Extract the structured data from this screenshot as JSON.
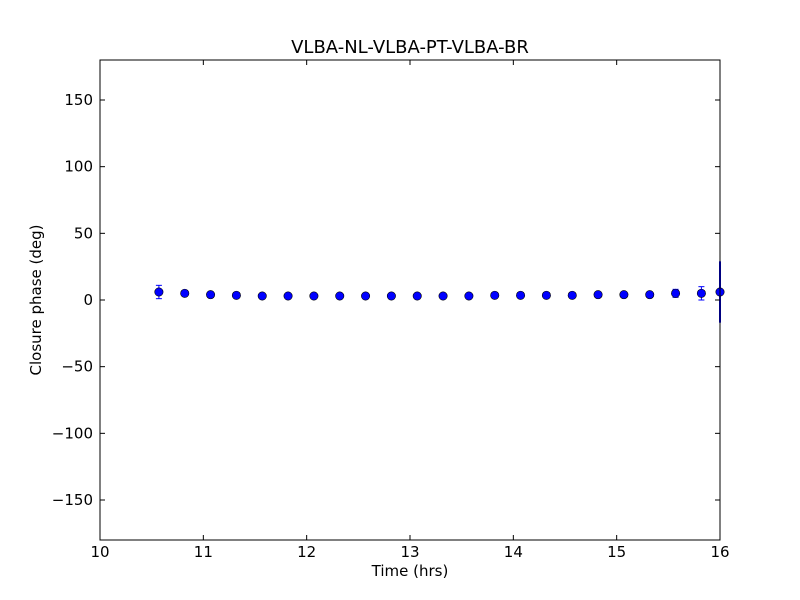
{
  "chart_data": {
    "type": "scatter",
    "title": "VLBA-NL-VLBA-PT-VLBA-BR",
    "xlabel": "Time (hrs)",
    "ylabel": "Closure phase (deg)",
    "xlim": [
      10,
      16
    ],
    "ylim": [
      -180,
      180
    ],
    "xticks": [
      10,
      11,
      12,
      13,
      14,
      15,
      16
    ],
    "xtick_labels": [
      "10",
      "11",
      "12",
      "13",
      "14",
      "15",
      "16"
    ],
    "yticks": [
      -150,
      -100,
      -50,
      0,
      50,
      100,
      150
    ],
    "ytick_labels": [
      "−150",
      "−100",
      "−50",
      "0",
      "50",
      "100",
      "150"
    ],
    "grid": false,
    "series": [
      {
        "color": "#0000ff",
        "marker": "circle",
        "points": [
          {
            "x": 10.57,
            "y": 6.0,
            "err": 5.0
          },
          {
            "x": 10.82,
            "y": 5.0,
            "err": 1.5
          },
          {
            "x": 11.07,
            "y": 4.0,
            "err": 1.5
          },
          {
            "x": 11.32,
            "y": 3.5,
            "err": 1.0
          },
          {
            "x": 11.57,
            "y": 3.0,
            "err": 1.0
          },
          {
            "x": 11.82,
            "y": 3.0,
            "err": 1.0
          },
          {
            "x": 12.07,
            "y": 3.0,
            "err": 1.0
          },
          {
            "x": 12.32,
            "y": 3.0,
            "err": 1.0
          },
          {
            "x": 12.57,
            "y": 3.0,
            "err": 1.0
          },
          {
            "x": 12.82,
            "y": 3.0,
            "err": 1.0
          },
          {
            "x": 13.07,
            "y": 3.0,
            "err": 1.0
          },
          {
            "x": 13.32,
            "y": 3.0,
            "err": 1.0
          },
          {
            "x": 13.57,
            "y": 3.0,
            "err": 1.0
          },
          {
            "x": 13.82,
            "y": 3.5,
            "err": 1.0
          },
          {
            "x": 14.07,
            "y": 3.5,
            "err": 1.0
          },
          {
            "x": 14.32,
            "y": 3.5,
            "err": 1.0
          },
          {
            "x": 14.57,
            "y": 3.5,
            "err": 1.0
          },
          {
            "x": 14.82,
            "y": 4.0,
            "err": 1.0
          },
          {
            "x": 15.07,
            "y": 4.0,
            "err": 1.5
          },
          {
            "x": 15.32,
            "y": 4.0,
            "err": 2.0
          },
          {
            "x": 15.57,
            "y": 5.0,
            "err": 3.0
          },
          {
            "x": 15.82,
            "y": 5.0,
            "err": 5.0
          },
          {
            "x": 16.0,
            "y": 6.0,
            "err": 23.0
          }
        ]
      }
    ]
  }
}
